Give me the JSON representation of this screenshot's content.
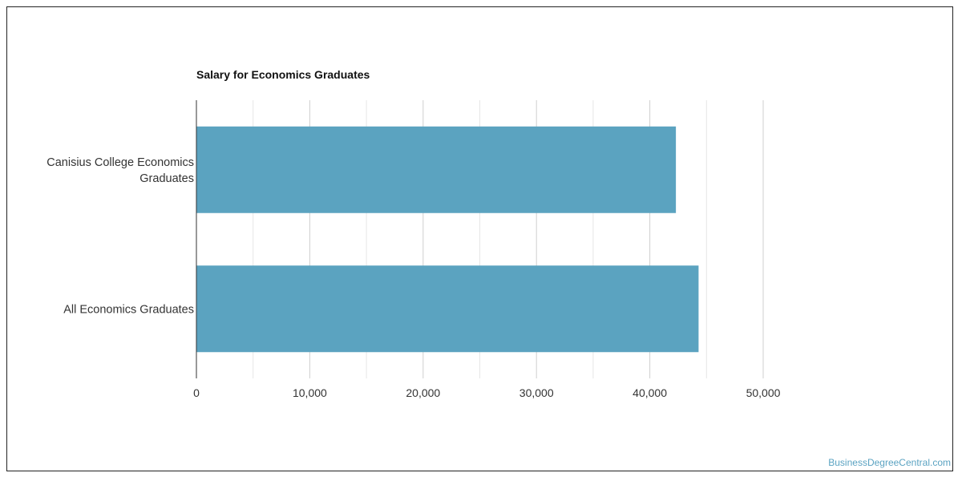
{
  "chart_data": {
    "type": "bar",
    "orientation": "horizontal",
    "title": "Salary for Economics Graduates",
    "categories": [
      [
        "Canisius College Economics",
        "Graduates"
      ],
      [
        "All Economics Graduates"
      ]
    ],
    "values": [
      42300,
      44300
    ],
    "xlim": [
      0,
      50000
    ],
    "xticks": [
      0,
      10000,
      20000,
      30000,
      40000,
      50000
    ],
    "xtick_labels": [
      "0",
      "10,000",
      "20,000",
      "30,000",
      "40,000",
      "50,000"
    ],
    "bar_color": "#5ba3c0",
    "grid": true,
    "legend": "none"
  },
  "watermark": "BusinessDegreeCentral.com"
}
